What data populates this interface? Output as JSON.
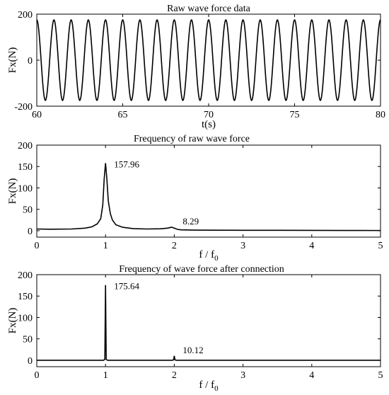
{
  "chart_data": [
    {
      "type": "line",
      "title": "Raw wave force data",
      "xlabel": "t(s)",
      "ylabel": "Fx(N)",
      "xlim": [
        60,
        80
      ],
      "ylim": [
        -200,
        200
      ],
      "xticks": [
        "60",
        "65",
        "70",
        "75",
        "80"
      ],
      "yticks": [
        "-200",
        "0",
        "200"
      ],
      "grid": false,
      "series": [
        {
          "amplitude": 175,
          "period": 1.0,
          "peak_at": 60.0,
          "note": "sinusoid, about 20 cycles in 20 s"
        }
      ]
    },
    {
      "type": "line",
      "title": "Frequency of raw wave force",
      "xlabel": "f / f",
      "xlabel_sub": "0",
      "ylabel": "Fx(N)",
      "xlim": [
        0,
        5
      ],
      "ylim": [
        -15,
        200
      ],
      "xticks": [
        "0",
        "1",
        "2",
        "3",
        "4",
        "5"
      ],
      "yticks": [
        "0",
        "50",
        "100",
        "150",
        "200"
      ],
      "grid": false,
      "series": [
        {
          "x": [
            0,
            0.2,
            0.5,
            0.7,
            0.8,
            0.88,
            0.93,
            0.96,
            0.98,
            1.0,
            1.02,
            1.04,
            1.07,
            1.1,
            1.15,
            1.25,
            1.4,
            1.6,
            1.8,
            1.9,
            1.96,
            2.0,
            2.05,
            2.1,
            2.3,
            2.6,
            3.0,
            3.5,
            4.0,
            4.5,
            5.0
          ],
          "y": [
            4,
            3.5,
            4,
            6,
            9,
            16,
            28,
            60,
            120,
            157.96,
            120,
            70,
            40,
            25,
            14,
            8,
            5,
            4,
            4.5,
            6,
            8.29,
            6,
            3,
            2,
            1.5,
            1.2,
            1,
            1,
            0.8,
            0.6,
            0.5
          ]
        }
      ],
      "annotations": [
        {
          "x": 1.0,
          "y": 157.96,
          "text": "157.96"
        },
        {
          "x": 2.0,
          "y": 8.29,
          "text": "8.29"
        }
      ]
    },
    {
      "type": "line",
      "title": "Frequency of wave force after connection",
      "xlabel": "f / f",
      "xlabel_sub": "0",
      "ylabel": "Fx(N)",
      "xlim": [
        0,
        5
      ],
      "ylim": [
        -15,
        200
      ],
      "xticks": [
        "0",
        "1",
        "2",
        "3",
        "4",
        "5"
      ],
      "yticks": [
        "0",
        "50",
        "100",
        "150",
        "200"
      ],
      "grid": false,
      "series": [
        {
          "x": [
            0,
            0.97,
            0.99,
            1.0,
            1.01,
            1.03,
            1.97,
            1.99,
            2.0,
            2.01,
            2.03,
            5.0
          ],
          "y": [
            0,
            0,
            2,
            175.64,
            2,
            0,
            0,
            1,
            10.12,
            1,
            0,
            0
          ]
        }
      ],
      "annotations": [
        {
          "x": 1.0,
          "y": 175.64,
          "text": "175.64"
        },
        {
          "x": 2.0,
          "y": 10.12,
          "text": "10.12"
        }
      ]
    }
  ]
}
